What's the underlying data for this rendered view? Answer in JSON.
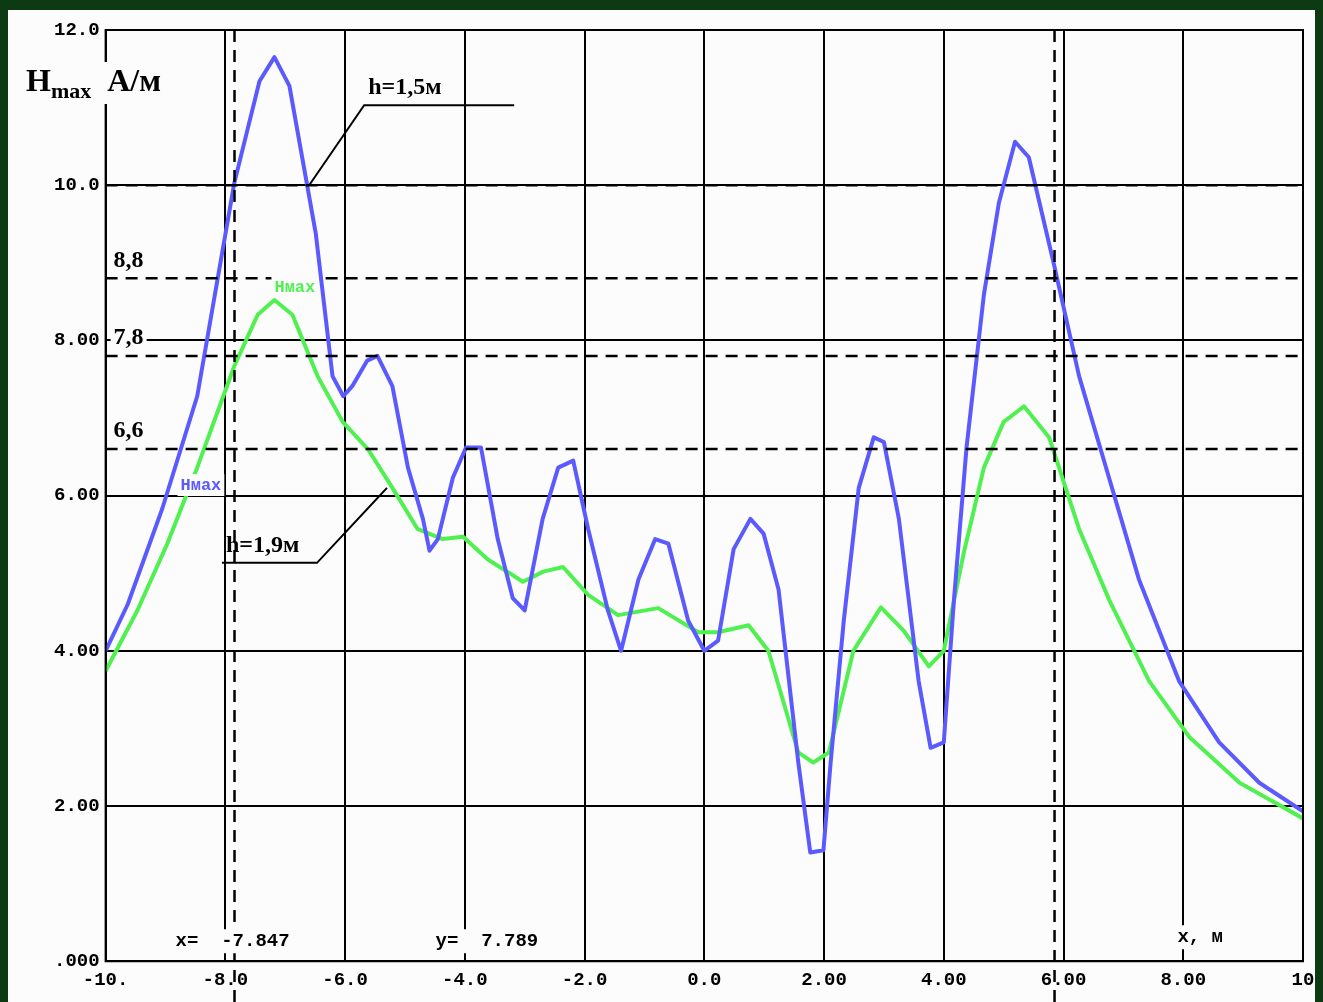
{
  "chart_data": {
    "type": "line",
    "xlabel": "x, м",
    "ylabel": "H$_{max}$ А/м",
    "xlim": [
      -10,
      10
    ],
    "ylim": [
      0,
      12
    ],
    "xticks": [
      {
        "value": -10,
        "label": "-10."
      },
      {
        "value": -8,
        "label": "-8.0"
      },
      {
        "value": -6,
        "label": "-6.0"
      },
      {
        "value": -4,
        "label": "-4.0"
      },
      {
        "value": -2,
        "label": "-2.0"
      },
      {
        "value": 0,
        "label": "0.0"
      },
      {
        "value": 2,
        "label": "2.00"
      },
      {
        "value": 4,
        "label": "4.00"
      },
      {
        "value": 6,
        "label": "6.00"
      },
      {
        "value": 8,
        "label": "8.00"
      },
      {
        "value": 10,
        "label": "10"
      }
    ],
    "yticks": [
      {
        "value": 0,
        "label": ".000"
      },
      {
        "value": 2,
        "label": "2.00"
      },
      {
        "value": 4,
        "label": "4.00"
      },
      {
        "value": 6,
        "label": "6.00"
      },
      {
        "value": 8,
        "label": "8.00"
      },
      {
        "value": 10,
        "label": "10.0"
      },
      {
        "value": 12,
        "label": "12.0"
      }
    ],
    "grid": true,
    "legend": false,
    "marker": "none",
    "line_style": "solid",
    "series": [
      {
        "name": "Hмax",
        "color": "#5a5aff",
        "x": [
          -10,
          -9.63,
          -9.05,
          -8.47,
          -7.85,
          -7.43,
          -7.18,
          -6.93,
          -6.49,
          -6.21,
          -6.03,
          -5.88,
          -5.63,
          -5.46,
          -5.21,
          -4.95,
          -4.7,
          -4.59,
          -4.45,
          -4.2,
          -3.98,
          -3.73,
          -3.45,
          -3.2,
          -3.0,
          -2.7,
          -2.44,
          -2.19,
          -1.94,
          -1.61,
          -1.39,
          -1.1,
          -0.82,
          -0.6,
          -0.27,
          0,
          0.23,
          0.49,
          0.77,
          0.99,
          1.24,
          1.57,
          1.77,
          1.99,
          2.11,
          2.33,
          2.58,
          2.83,
          3.0,
          3.25,
          3.58,
          3.78,
          4.0,
          4.17,
          4.38,
          4.67,
          4.92,
          5.19,
          5.42,
          5.84,
          6.26,
          6.76,
          7.26,
          7.93,
          8.6,
          9.27,
          10
        ],
        "values": [
          4.0,
          4.6,
          5.84,
          7.28,
          10.03,
          11.34,
          11.65,
          11.28,
          9.38,
          7.54,
          7.28,
          7.41,
          7.74,
          7.8,
          7.41,
          6.36,
          5.7,
          5.29,
          5.44,
          6.23,
          6.62,
          6.62,
          5.44,
          4.68,
          4.52,
          5.7,
          6.36,
          6.45,
          5.57,
          4.52,
          4.0,
          4.92,
          5.44,
          5.38,
          4.39,
          4.0,
          4.13,
          5.31,
          5.7,
          5.51,
          4.79,
          2.56,
          1.4,
          1.43,
          2.56,
          4.39,
          6.1,
          6.75,
          6.69,
          5.7,
          3.61,
          2.75,
          2.82,
          4.66,
          6.62,
          8.59,
          9.77,
          10.56,
          10.36,
          8.98,
          7.54,
          6.23,
          4.92,
          3.61,
          2.82,
          2.3,
          1.93
        ]
      },
      {
        "name": "Hмax",
        "color": "#50f050",
        "x": [
          -10,
          -9.47,
          -8.97,
          -8.47,
          -7.85,
          -7.46,
          -7.18,
          -6.88,
          -6.46,
          -6.04,
          -5.62,
          -5.21,
          -4.79,
          -4.37,
          -4.03,
          -3.62,
          -3.03,
          -2.69,
          -2.36,
          -1.94,
          -1.44,
          -0.77,
          -0.1,
          0.23,
          0.74,
          1.07,
          1.57,
          1.82,
          2.08,
          2.49,
          2.95,
          3.33,
          3.75,
          4.0,
          4.33,
          4.67,
          5.0,
          5.34,
          5.76,
          6.26,
          6.76,
          7.43,
          8.1,
          8.94,
          10
        ],
        "values": [
          3.74,
          4.52,
          5.38,
          6.36,
          7.67,
          8.33,
          8.52,
          8.33,
          7.54,
          6.95,
          6.6,
          6.1,
          5.57,
          5.44,
          5.47,
          5.18,
          4.89,
          5.02,
          5.08,
          4.72,
          4.46,
          4.55,
          4.24,
          4.24,
          4.33,
          4.0,
          2.69,
          2.56,
          2.69,
          4.0,
          4.56,
          4.26,
          3.8,
          4.0,
          5.25,
          6.36,
          6.95,
          7.15,
          6.75,
          5.57,
          4.66,
          3.61,
          2.89,
          2.3,
          1.84
        ]
      }
    ],
    "ref_lines": [
      {
        "axis": "y",
        "value": 10,
        "color": "#000000",
        "line_style": "dashed"
      },
      {
        "axis": "y",
        "value": 8.8,
        "label": "8,8",
        "color": "#000000",
        "line_style": "dashed"
      },
      {
        "axis": "y",
        "value": 7.8,
        "label": "7,8",
        "color": "#000000",
        "line_style": "dashed"
      },
      {
        "axis": "y",
        "value": 6.6,
        "label": "6,6",
        "color": "#000000",
        "line_style": "dashed"
      },
      {
        "axis": "x",
        "value": -7.847,
        "color": "#000000",
        "line_style": "dashed"
      },
      {
        "axis": "x",
        "value": 5.85,
        "color": "#000000",
        "line_style": "dashed"
      }
    ],
    "annotations": [
      {
        "text": "h=1,5м",
        "x": -6.6,
        "y": 10.0
      },
      {
        "text": "h=1,9м",
        "x": -5.3,
        "y": 6.1
      },
      "x=  -7.847",
      "y=  7.789"
    ]
  }
}
